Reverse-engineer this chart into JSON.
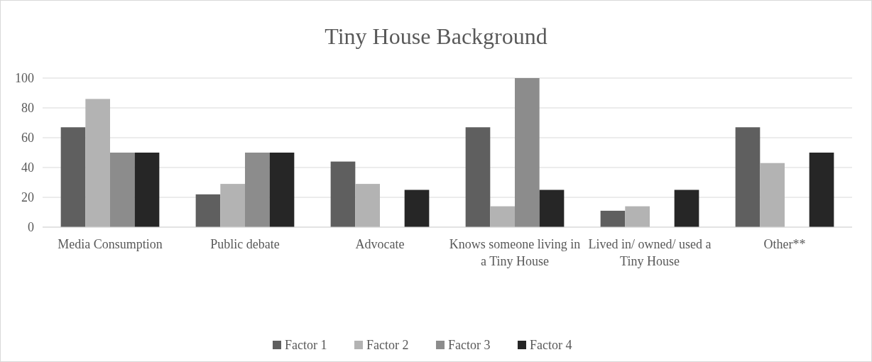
{
  "chart_data": {
    "type": "bar",
    "title": "Tiny House Background",
    "categories": [
      "Media Consumption",
      "Public debate",
      "Advocate",
      "Knows someone living in a Tiny House",
      "Lived in/ owned/ used a Tiny House",
      "Other**"
    ],
    "series": [
      {
        "name": "Factor 1",
        "color": "#5f5f5f",
        "values": [
          67,
          22,
          44,
          67,
          11,
          67
        ]
      },
      {
        "name": "Factor 2",
        "color": "#b3b3b3",
        "values": [
          86,
          29,
          29,
          14,
          14,
          43
        ]
      },
      {
        "name": "Factor 3",
        "color": "#8c8c8c",
        "values": [
          50,
          50,
          0,
          100,
          0,
          0
        ]
      },
      {
        "name": "Factor 4",
        "color": "#262626",
        "values": [
          50,
          50,
          25,
          25,
          25,
          50
        ]
      }
    ],
    "ylim": [
      0,
      100
    ],
    "yticks": [
      0,
      20,
      40,
      60,
      80,
      100
    ],
    "grid": "y",
    "legend": "bottom"
  }
}
